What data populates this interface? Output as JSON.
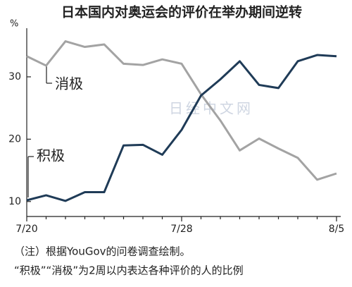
{
  "chart_data": {
    "type": "line",
    "title": "日本国内对奥运会的评价在举办期间逆转",
    "y_label": "%",
    "categories": [
      "7/20",
      null,
      null,
      null,
      null,
      null,
      null,
      null,
      "7/28",
      null,
      null,
      null,
      null,
      null,
      null,
      null,
      "8/5"
    ],
    "series": [
      {
        "name": "消极",
        "color": "#a3a3a3",
        "values": [
          33.3,
          31.8,
          35.7,
          34.8,
          35.2,
          32.1,
          31.9,
          32.8,
          32.1,
          27.2,
          23,
          18.2,
          20.1,
          18.5,
          17,
          13.5,
          14.5
        ]
      },
      {
        "name": "积极",
        "color": "#1f3b57",
        "values": [
          10.2,
          11,
          10.1,
          11.5,
          11.5,
          19,
          19.1,
          17.5,
          21.5,
          27,
          29.6,
          32.5,
          28.7,
          28.2,
          32.5,
          33.5,
          33.3
        ]
      }
    ],
    "ylim": [
      7.6,
      37.8
    ],
    "yticks": [
      10,
      20,
      30
    ],
    "grid": false,
    "watermark": "日经中文网",
    "notes": [
      "（注）根据YouGov的问卷调查绘制。",
      "“积极”“消极”为2周以内表达各种评价的人的比例"
    ]
  }
}
